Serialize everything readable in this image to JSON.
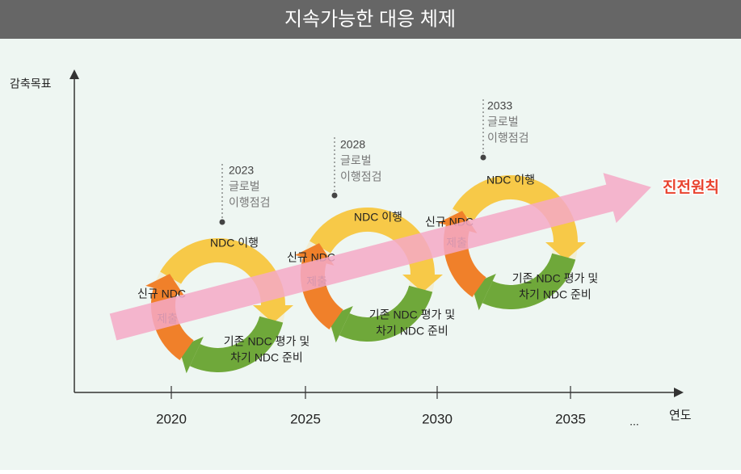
{
  "header": {
    "title": "지속가능한 대응 체제"
  },
  "axes": {
    "y_label": "감축목표",
    "x_label": "연도",
    "x_ticks": [
      "2020",
      "2025",
      "2030",
      "2035",
      "..."
    ]
  },
  "cycles": [
    {
      "checkpoint": [
        "2023",
        "글로벌",
        "이행점검"
      ],
      "implement": "NDC 이행",
      "submit": [
        "신규 NDC",
        "제출"
      ],
      "review": [
        "기존 NDC 평가 및",
        "차기 NDC 준비"
      ]
    },
    {
      "checkpoint": [
        "2028",
        "글로벌",
        "이행점검"
      ],
      "implement": "NDC 이행",
      "submit": [
        "신규 NDC",
        "제출"
      ],
      "review": [
        "기존 NDC 평가 및",
        "차기 NDC 준비"
      ]
    },
    {
      "checkpoint": [
        "2033",
        "글로벌",
        "이행점검"
      ],
      "implement": "NDC 이행",
      "submit": [
        "신규 NDC",
        "제출"
      ],
      "review": [
        "기존 NDC 평가 및",
        "차기 NDC 준비"
      ]
    }
  ],
  "principle": "진전원칙"
}
